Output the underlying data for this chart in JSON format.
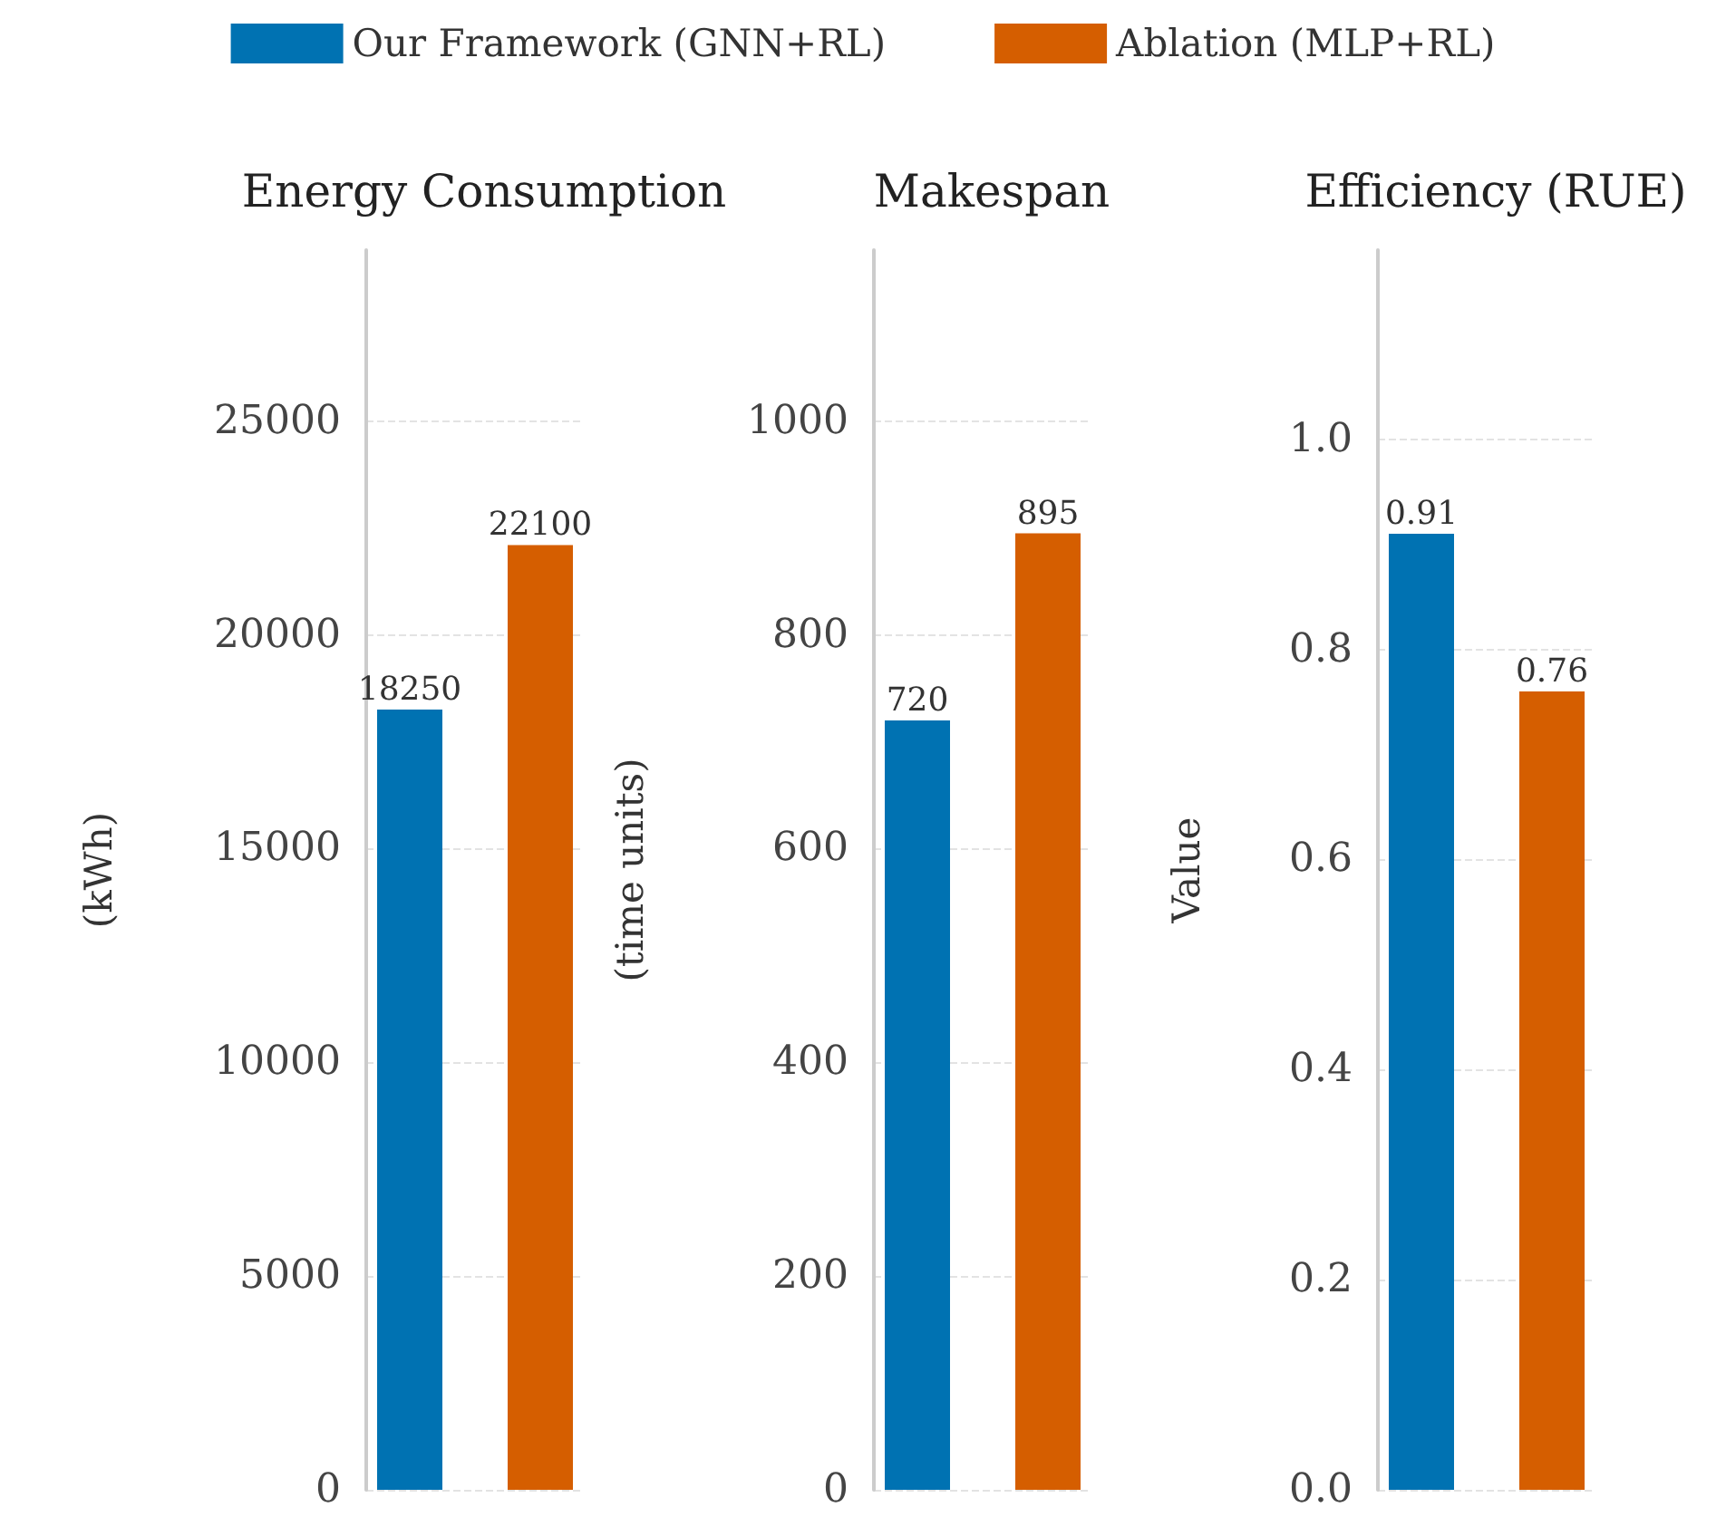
{
  "chart_data": [
    {
      "type": "bar",
      "title": "Energy Consumption",
      "ylabel": "(kWh)",
      "categories": [
        null
      ],
      "legend": "top",
      "grid": "y",
      "data_labels": true,
      "ylim": [
        0,
        29000
      ],
      "yticks": [
        0,
        5000,
        10000,
        15000,
        20000,
        25000
      ],
      "series": [
        {
          "name": "Our Framework (GNN+RL)",
          "color": "#0072b2",
          "values": [
            18250
          ]
        },
        {
          "name": "Ablation (MLP+RL)",
          "color": "#d55e00",
          "values": [
            22100
          ]
        }
      ]
    },
    {
      "type": "bar",
      "title": "Makespan",
      "ylabel": "(time units)",
      "categories": [
        null
      ],
      "grid": "y",
      "data_labels": true,
      "ylim": [
        0,
        1160
      ],
      "yticks": [
        0,
        200,
        400,
        600,
        800,
        1000
      ],
      "series": [
        {
          "color": "#0072b2",
          "values": [
            720
          ]
        },
        {
          "color": "#d55e00",
          "values": [
            895
          ]
        }
      ]
    },
    {
      "type": "bar",
      "title": "Efficiency (RUE)",
      "ylabel": "Value",
      "categories": [
        null
      ],
      "grid": "y",
      "data_labels": true,
      "ylim": [
        0,
        1.18
      ],
      "yticks": [
        {
          "value": 0,
          "label": "0.0"
        },
        0.2,
        0.4,
        0.6,
        0.8,
        {
          "value": 1,
          "label": "1.0"
        }
      ],
      "series": [
        {
          "color": "#0072b2",
          "values": [
            0.91
          ]
        },
        {
          "color": "#d55e00",
          "values": [
            0.76
          ]
        }
      ]
    }
  ]
}
